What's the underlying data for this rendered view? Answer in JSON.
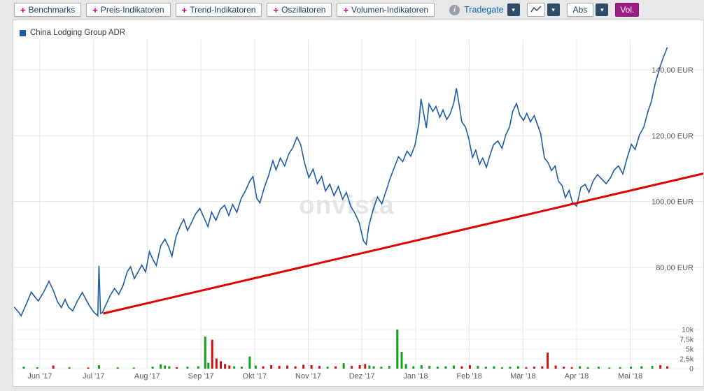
{
  "toolbar": {
    "plus": "+",
    "dropdown_glyph": "▾",
    "info_glyph": "i",
    "indicator_buttons": [
      {
        "label": "Benchmarks"
      },
      {
        "label": "Preis-Indikatoren"
      },
      {
        "label": "Trend-Indikatoren"
      },
      {
        "label": "Oszillatoren"
      },
      {
        "label": "Volumen-Indikatoren"
      }
    ],
    "exchange_label": "Tradegate",
    "scale_label": "Abs",
    "volume_label": "Vol."
  },
  "legend": {
    "series": "China Lodging Group ADR"
  },
  "watermark": "onvista",
  "colors": {
    "price_line": "#1d5ba4",
    "trend_line": "#e00000",
    "volume_up": "#12a01b",
    "volume_down": "#cc1111",
    "grid": "#e4e4e4",
    "grid_faint": "#f0f0f0",
    "axis_text": "#5a5a5a",
    "accent_magenta": "#c2006e",
    "button_text": "#1d3f63",
    "vol_button_bg": "#9c1d85",
    "dropdown_bg": "#2f4d68",
    "exchange_text": "#0b68b4"
  },
  "chart_data": {
    "type": "line",
    "title": "China Lodging Group ADR",
    "unit": "EUR",
    "legend_position": "top-left",
    "grid": true,
    "x_tick_labels": [
      "Jun '17",
      "Jul '17",
      "Aug '17",
      "Sep '17",
      "Okt '17",
      "Nov '17",
      "Dez '17",
      "Jan '18",
      "Feb '18",
      "Mär '18",
      "Apr '18",
      "Mai '18"
    ],
    "price_axis": {
      "labels": [
        "140,00 EUR",
        "120,00 EUR",
        "100,00 EUR",
        "80,00 EUR"
      ],
      "values": [
        140,
        120,
        100,
        80
      ],
      "range": [
        62,
        150
      ]
    },
    "volume_axis": {
      "labels": [
        "10k",
        "7,5k",
        "5k",
        "2,5k",
        "0"
      ],
      "values": [
        10,
        7.5,
        5,
        2.5,
        0
      ],
      "range": [
        0,
        11
      ]
    },
    "price_series": [
      [
        -0.48,
        68.0
      ],
      [
        -0.4,
        66.5
      ],
      [
        -0.35,
        65.3
      ],
      [
        -0.25,
        69.0
      ],
      [
        -0.16,
        72.5
      ],
      [
        -0.09,
        71.0
      ],
      [
        -0.03,
        69.8
      ],
      [
        0.07,
        72.5
      ],
      [
        0.17,
        75.8
      ],
      [
        0.25,
        73.0
      ],
      [
        0.33,
        69.5
      ],
      [
        0.4,
        67.8
      ],
      [
        0.47,
        70.3
      ],
      [
        0.53,
        68.0
      ],
      [
        0.61,
        66.8
      ],
      [
        0.69,
        69.5
      ],
      [
        0.79,
        72.4
      ],
      [
        0.86,
        70.2
      ],
      [
        0.92,
        68.4
      ],
      [
        1.0,
        66.5
      ],
      [
        1.08,
        65.3
      ],
      [
        1.1,
        80.5
      ],
      [
        1.13,
        66.0
      ],
      [
        1.16,
        66.2
      ],
      [
        1.24,
        69.0
      ],
      [
        1.31,
        71.5
      ],
      [
        1.39,
        73.6
      ],
      [
        1.47,
        71.8
      ],
      [
        1.55,
        74.5
      ],
      [
        1.63,
        78.8
      ],
      [
        1.69,
        80.2
      ],
      [
        1.76,
        76.6
      ],
      [
        1.84,
        78.9
      ],
      [
        1.9,
        80.7
      ],
      [
        1.97,
        78.6
      ],
      [
        2.04,
        84.8
      ],
      [
        2.11,
        82.3
      ],
      [
        2.17,
        80.6
      ],
      [
        2.25,
        86.5
      ],
      [
        2.33,
        88.6
      ],
      [
        2.4,
        86.2
      ],
      [
        2.46,
        83.4
      ],
      [
        2.54,
        89.5
      ],
      [
        2.62,
        92.8
      ],
      [
        2.68,
        94.6
      ],
      [
        2.75,
        91.2
      ],
      [
        2.83,
        93.8
      ],
      [
        2.9,
        96.2
      ],
      [
        2.98,
        97.9
      ],
      [
        3.06,
        95.0
      ],
      [
        3.13,
        92.4
      ],
      [
        3.2,
        96.8
      ],
      [
        3.28,
        94.3
      ],
      [
        3.36,
        97.6
      ],
      [
        3.44,
        98.9
      ],
      [
        3.52,
        95.8
      ],
      [
        3.59,
        99.1
      ],
      [
        3.67,
        96.7
      ],
      [
        3.75,
        100.9
      ],
      [
        3.83,
        103.3
      ],
      [
        3.91,
        106.2
      ],
      [
        3.97,
        107.6
      ],
      [
        4.04,
        101.0
      ],
      [
        4.1,
        99.6
      ],
      [
        4.18,
        104.2
      ],
      [
        4.26,
        107.8
      ],
      [
        4.34,
        112.4
      ],
      [
        4.4,
        109.6
      ],
      [
        4.48,
        113.2
      ],
      [
        4.56,
        110.8
      ],
      [
        4.64,
        114.6
      ],
      [
        4.71,
        116.3
      ],
      [
        4.79,
        119.6
      ],
      [
        4.86,
        117.2
      ],
      [
        4.93,
        111.8
      ],
      [
        5.01,
        107.3
      ],
      [
        5.09,
        109.8
      ],
      [
        5.17,
        105.4
      ],
      [
        5.25,
        107.6
      ],
      [
        5.32,
        103.2
      ],
      [
        5.4,
        105.3
      ],
      [
        5.48,
        101.8
      ],
      [
        5.56,
        104.6
      ],
      [
        5.64,
        100.7
      ],
      [
        5.71,
        102.8
      ],
      [
        5.79,
        98.6
      ],
      [
        5.87,
        96.4
      ],
      [
        5.95,
        93.5
      ],
      [
        6.03,
        88.0
      ],
      [
        6.08,
        87.0
      ],
      [
        6.13,
        92.8
      ],
      [
        6.21,
        97.6
      ],
      [
        6.29,
        101.4
      ],
      [
        6.37,
        99.3
      ],
      [
        6.45,
        103.2
      ],
      [
        6.52,
        106.8
      ],
      [
        6.6,
        110.2
      ],
      [
        6.68,
        113.6
      ],
      [
        6.76,
        112.1
      ],
      [
        6.84,
        115.3
      ],
      [
        6.91,
        113.8
      ],
      [
        6.99,
        117.2
      ],
      [
        7.06,
        123.5
      ],
      [
        7.1,
        131.2
      ],
      [
        7.15,
        126.8
      ],
      [
        7.2,
        122.4
      ],
      [
        7.25,
        129.6
      ],
      [
        7.32,
        127.4
      ],
      [
        7.38,
        128.9
      ],
      [
        7.45,
        125.6
      ],
      [
        7.51,
        127.8
      ],
      [
        7.58,
        124.9
      ],
      [
        7.64,
        126.5
      ],
      [
        7.71,
        129.8
      ],
      [
        7.76,
        134.4
      ],
      [
        7.81,
        129.6
      ],
      [
        7.86,
        124.2
      ],
      [
        7.93,
        122.6
      ],
      [
        7.99,
        119.2
      ],
      [
        8.06,
        113.4
      ],
      [
        8.12,
        115.6
      ],
      [
        8.19,
        111.3
      ],
      [
        8.25,
        113.2
      ],
      [
        8.32,
        110.4
      ],
      [
        8.39,
        114.3
      ],
      [
        8.45,
        117.2
      ],
      [
        8.53,
        118.4
      ],
      [
        8.61,
        116.2
      ],
      [
        8.68,
        120.3
      ],
      [
        8.75,
        122.6
      ],
      [
        8.81,
        127.4
      ],
      [
        8.88,
        129.8
      ],
      [
        8.94,
        126.3
      ],
      [
        9.01,
        124.6
      ],
      [
        9.07,
        126.8
      ],
      [
        9.14,
        124.2
      ],
      [
        9.21,
        126.1
      ],
      [
        9.27,
        123.4
      ],
      [
        9.33,
        120.6
      ],
      [
        9.4,
        113.2
      ],
      [
        9.47,
        111.8
      ],
      [
        9.53,
        109.4
      ],
      [
        9.6,
        110.8
      ],
      [
        9.66,
        106.2
      ],
      [
        9.73,
        104.8
      ],
      [
        9.79,
        101.2
      ],
      [
        9.86,
        103.4
      ],
      [
        9.92,
        99.8
      ],
      [
        10.0,
        98.6
      ],
      [
        10.08,
        104.3
      ],
      [
        10.16,
        105.2
      ],
      [
        10.23,
        102.8
      ],
      [
        10.31,
        106.4
      ],
      [
        10.39,
        108.2
      ],
      [
        10.47,
        106.8
      ],
      [
        10.55,
        105.4
      ],
      [
        10.63,
        107.2
      ],
      [
        10.7,
        109.6
      ],
      [
        10.78,
        110.8
      ],
      [
        10.86,
        108.4
      ],
      [
        10.94,
        113.2
      ],
      [
        11.02,
        117.4
      ],
      [
        11.09,
        115.8
      ],
      [
        11.17,
        120.2
      ],
      [
        11.25,
        122.6
      ],
      [
        11.33,
        127.4
      ],
      [
        11.39,
        130.2
      ],
      [
        11.46,
        135.6
      ],
      [
        11.51,
        138.4
      ],
      [
        11.56,
        141.2
      ],
      [
        11.61,
        143.6
      ],
      [
        11.65,
        145.2
      ],
      [
        11.69,
        146.8
      ]
    ],
    "trend_line": {
      "from": [
        1.18,
        66.0
      ],
      "to": [
        12.36,
        108.5
      ]
    },
    "volume_bars": [
      [
        -0.3,
        0.5,
        "up"
      ],
      [
        -0.05,
        0.35,
        "up"
      ],
      [
        0.25,
        0.8,
        "down"
      ],
      [
        0.55,
        0.4,
        "up"
      ],
      [
        0.9,
        0.3,
        "down"
      ],
      [
        1.1,
        0.9,
        "up"
      ],
      [
        1.45,
        0.35,
        "up"
      ],
      [
        1.75,
        0.3,
        "up"
      ],
      [
        2.1,
        0.5,
        "up"
      ],
      [
        2.25,
        1.1,
        "up"
      ],
      [
        2.33,
        0.8,
        "up"
      ],
      [
        2.41,
        0.6,
        "up"
      ],
      [
        2.55,
        0.4,
        "down"
      ],
      [
        2.75,
        0.5,
        "up"
      ],
      [
        2.95,
        0.6,
        "up"
      ],
      [
        3.08,
        8.2,
        "up"
      ],
      [
        3.14,
        1.5,
        "up"
      ],
      [
        3.21,
        7.4,
        "down"
      ],
      [
        3.29,
        2.6,
        "down"
      ],
      [
        3.37,
        1.9,
        "down"
      ],
      [
        3.45,
        1.2,
        "down"
      ],
      [
        3.53,
        0.8,
        "down"
      ],
      [
        3.62,
        0.6,
        "up"
      ],
      [
        3.76,
        0.5,
        "up"
      ],
      [
        3.91,
        3.1,
        "up"
      ],
      [
        4.02,
        0.8,
        "up"
      ],
      [
        4.16,
        0.6,
        "down"
      ],
      [
        4.31,
        0.9,
        "down"
      ],
      [
        4.46,
        0.7,
        "down"
      ],
      [
        4.61,
        0.8,
        "down"
      ],
      [
        4.76,
        0.6,
        "down"
      ],
      [
        4.91,
        1.0,
        "down"
      ],
      [
        5.06,
        0.9,
        "down"
      ],
      [
        5.21,
        0.7,
        "down"
      ],
      [
        5.36,
        0.5,
        "up"
      ],
      [
        5.51,
        0.6,
        "down"
      ],
      [
        5.66,
        1.4,
        "up"
      ],
      [
        5.81,
        0.7,
        "down"
      ],
      [
        5.96,
        0.9,
        "down"
      ],
      [
        6.06,
        1.2,
        "down"
      ],
      [
        6.14,
        0.8,
        "up"
      ],
      [
        6.22,
        0.6,
        "up"
      ],
      [
        6.36,
        0.5,
        "up"
      ],
      [
        6.51,
        0.7,
        "up"
      ],
      [
        6.66,
        10.0,
        "up"
      ],
      [
        6.74,
        4.3,
        "up"
      ],
      [
        6.82,
        1.2,
        "up"
      ],
      [
        6.96,
        0.6,
        "up"
      ],
      [
        7.11,
        0.9,
        "up"
      ],
      [
        7.26,
        0.7,
        "up"
      ],
      [
        7.41,
        0.5,
        "up"
      ],
      [
        7.56,
        0.6,
        "up"
      ],
      [
        7.71,
        0.8,
        "up"
      ],
      [
        7.86,
        0.6,
        "down"
      ],
      [
        8.01,
        0.9,
        "down"
      ],
      [
        8.16,
        0.7,
        "up"
      ],
      [
        8.31,
        0.5,
        "up"
      ],
      [
        8.46,
        0.6,
        "up"
      ],
      [
        8.61,
        0.4,
        "up"
      ],
      [
        8.76,
        0.5,
        "up"
      ],
      [
        8.91,
        0.6,
        "up"
      ],
      [
        9.06,
        0.4,
        "down"
      ],
      [
        9.21,
        0.5,
        "down"
      ],
      [
        9.36,
        0.6,
        "down"
      ],
      [
        9.46,
        4.1,
        "down"
      ],
      [
        9.61,
        0.8,
        "down"
      ],
      [
        9.76,
        0.5,
        "down"
      ],
      [
        9.91,
        0.4,
        "down"
      ],
      [
        10.06,
        0.6,
        "up"
      ],
      [
        10.21,
        0.4,
        "up"
      ],
      [
        10.41,
        0.5,
        "up"
      ],
      [
        10.61,
        0.3,
        "up"
      ],
      [
        10.81,
        0.4,
        "up"
      ],
      [
        11.01,
        0.5,
        "up"
      ],
      [
        11.21,
        0.6,
        "up"
      ],
      [
        11.41,
        0.7,
        "up"
      ],
      [
        11.56,
        0.9,
        "down"
      ],
      [
        11.69,
        0.6,
        "down"
      ]
    ]
  }
}
